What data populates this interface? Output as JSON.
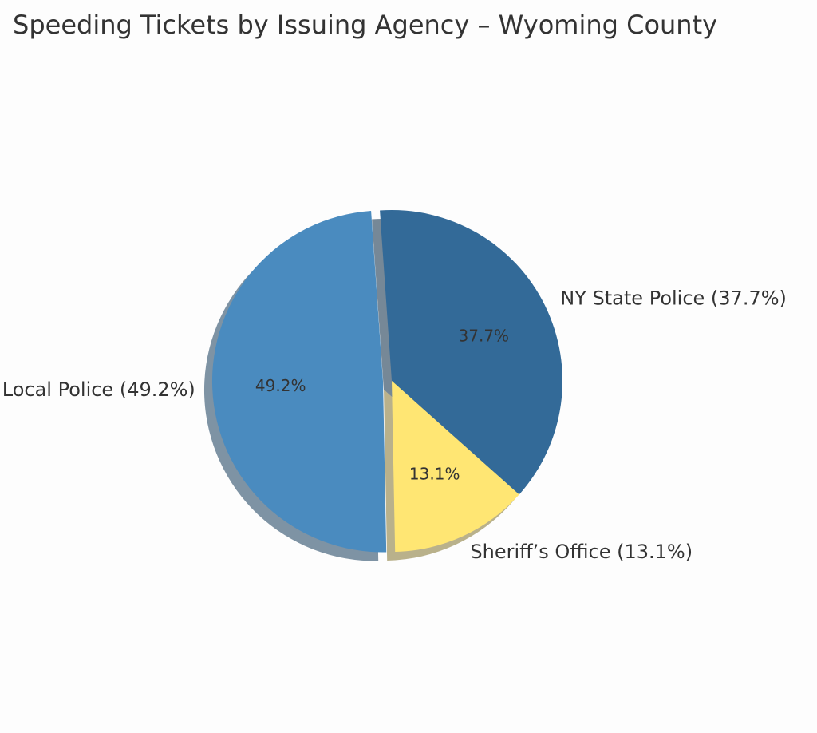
{
  "chart_data": {
    "type": "pie",
    "title": "Speeding Tickets by Issuing Agency – Wyoming County",
    "categories": [
      "NY State Police",
      "Sheriff’s Office",
      "Local Police"
    ],
    "values": [
      37.7,
      13.1,
      49.2
    ],
    "unit": "%",
    "slice_labels": [
      "NY State Police (37.7%)",
      "Sheriff’s Office (13.1%)",
      "Local Police (49.2%)"
    ],
    "pct_labels": [
      "37.7%",
      "13.1%",
      "49.2%"
    ],
    "colors": [
      "#336a98",
      "#ffe673",
      "#4a8bbf"
    ],
    "exploded": [
      false,
      false,
      true
    ],
    "shadow": true,
    "start_angle_deg": 94,
    "direction": "clockwise",
    "legend": false,
    "background_color": "#fdfdfd",
    "text_color": "#333333"
  }
}
